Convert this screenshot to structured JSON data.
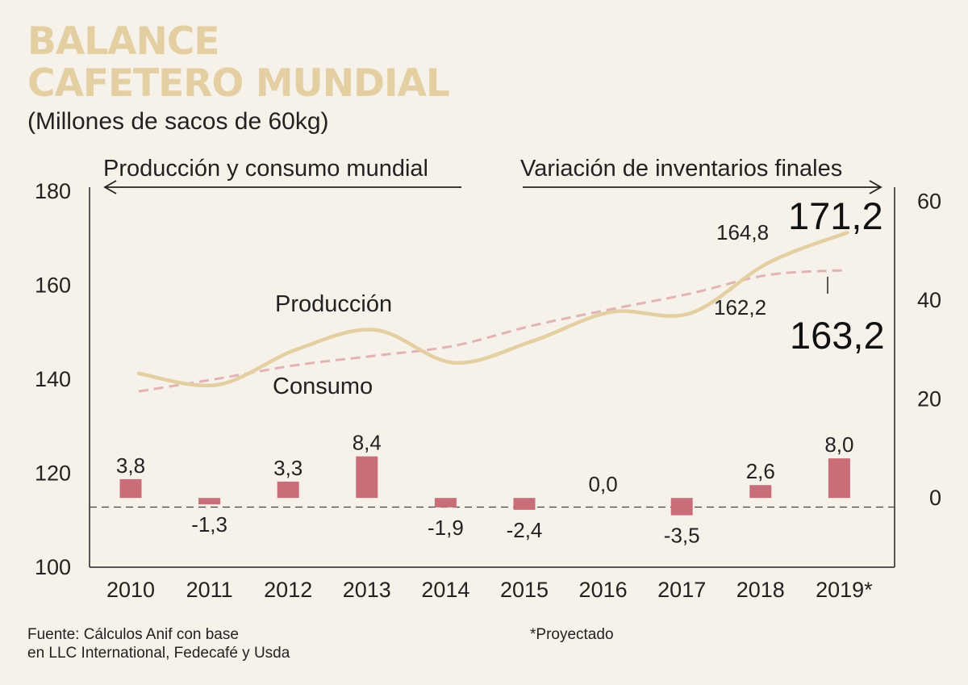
{
  "header": {
    "title_line1": "BALANCE",
    "title_line2": "CAFETERO MUNDIAL",
    "subtitle": "(Millones de sacos de 60kg)",
    "left_header": "Producción y consumo mundial",
    "right_header": "Variación de inventarios finales"
  },
  "colors": {
    "production": "#e3cfa2",
    "consumption": "#e2b3b5",
    "bars": "#c96e78",
    "background": "#f6f1e9"
  },
  "chart_data": {
    "type": "line+bar",
    "categories": [
      "2010",
      "2011",
      "2012",
      "2013",
      "2014",
      "2015",
      "2016",
      "2017",
      "2018",
      "2019*"
    ],
    "left_axis": {
      "range": [
        100,
        180
      ],
      "ticks": [
        "100",
        "120",
        "140",
        "160",
        "180"
      ]
    },
    "right_axis": {
      "range": [
        -14,
        62
      ],
      "ticks": [
        "0",
        "20",
        "40",
        "60"
      ]
    },
    "series": [
      {
        "name": "Producción",
        "axis": "left",
        "style": "solid",
        "values": [
          141.2,
          138.8,
          146.3,
          150.5,
          143.5,
          148.1,
          154.3,
          154.0,
          164.8,
          171.2
        ]
      },
      {
        "name": "Consumo",
        "axis": "left",
        "style": "dashed",
        "values": [
          137.4,
          140.1,
          143.0,
          145.0,
          147.1,
          151.4,
          154.9,
          158.2,
          162.2,
          163.2
        ]
      },
      {
        "name": "Variación de inventarios finales",
        "axis": "right",
        "style": "bar",
        "values": [
          3.8,
          -1.3,
          3.3,
          8.4,
          -1.9,
          -2.4,
          0.0,
          -3.5,
          2.6,
          8.0
        ],
        "labels": [
          "3,8",
          "-1,3",
          "3,3",
          "8,4",
          "-1,9",
          "-2,4",
          "0,0",
          "-3,5",
          "2,6",
          "8,0"
        ]
      }
    ],
    "annotations": {
      "production_2018": "164,8",
      "production_2019": "171,2",
      "consumption_2018": "162,2",
      "consumption_2019": "163,2",
      "production_label": "Producción",
      "consumption_label": "Consumo"
    }
  },
  "footer": {
    "source_line1": "Fuente: Cálculos Anif con base",
    "source_line2": "en LLC International, Fedecafé y Usda",
    "note": "*Proyectado"
  }
}
